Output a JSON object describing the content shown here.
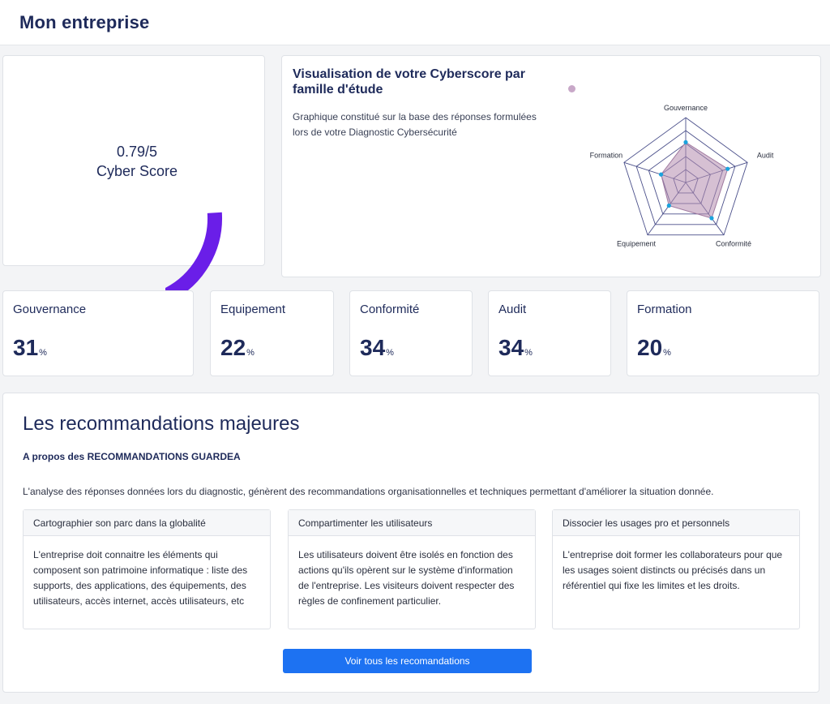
{
  "header": {
    "title": "Mon entreprise"
  },
  "score": {
    "value": "0.79/5",
    "label": "Cyber Score",
    "gauge_color": "#6a1ee8",
    "gauge_fraction": 0.158
  },
  "radar": {
    "title": "Visualisation de votre Cyberscore par famille d'étude",
    "description": "Graphique constitué sur la base des réponses formulées lors de votre Diagnostic Cybersécurité",
    "legend_color": "#c8a8c8",
    "axes": [
      "Gouvernance",
      "Audit",
      "Conformité",
      "Equipement",
      "Formation"
    ]
  },
  "chart_data": {
    "type": "radar",
    "categories": [
      "Gouvernance",
      "Audit",
      "Conformité",
      "Equipement",
      "Formation"
    ],
    "series": [
      {
        "values": [
          31,
          34,
          34,
          22,
          20
        ]
      }
    ],
    "rlim": [
      0,
      50
    ]
  },
  "stats": [
    {
      "label": "Gouvernance",
      "value": "31",
      "unit": "%"
    },
    {
      "label": "Equipement",
      "value": "22",
      "unit": "%"
    },
    {
      "label": "Conformité",
      "value": "34",
      "unit": "%"
    },
    {
      "label": "Audit",
      "value": "34",
      "unit": "%"
    },
    {
      "label": "Formation",
      "value": "20",
      "unit": "%"
    }
  ],
  "recommendations": {
    "title": "Les recommandations majeures",
    "subtitle": "A propos des RECOMMANDATIONS GUARDEA",
    "description": "L'analyse des réponses données lors du diagnostic, génèrent des recommandations organisationnelles et techniques permettant d'améliorer la situation donnée.",
    "items": [
      {
        "title": "Cartographier son parc dans la globalité",
        "body": "L'entreprise doit connaitre les éléments qui composent son patrimoine informatique : liste des supports, des applications, des équipements, des utilisateurs, accès internet, accès utilisateurs, etc"
      },
      {
        "title": "Compartimenter les utilisateurs",
        "body": "Les utilisateurs doivent être isolés en fonction des actions qu'ils opèrent sur le système d'information de l'entreprise. Les visiteurs doivent respecter des règles de confinement particulier."
      },
      {
        "title": "Dissocier les usages pro et personnels",
        "body": "L'entreprise doit former les collaborateurs pour que les usages soient distincts ou précisés dans un référentiel qui fixe les limites et les droits."
      }
    ],
    "button_label": "Voir tous les recomandations"
  }
}
